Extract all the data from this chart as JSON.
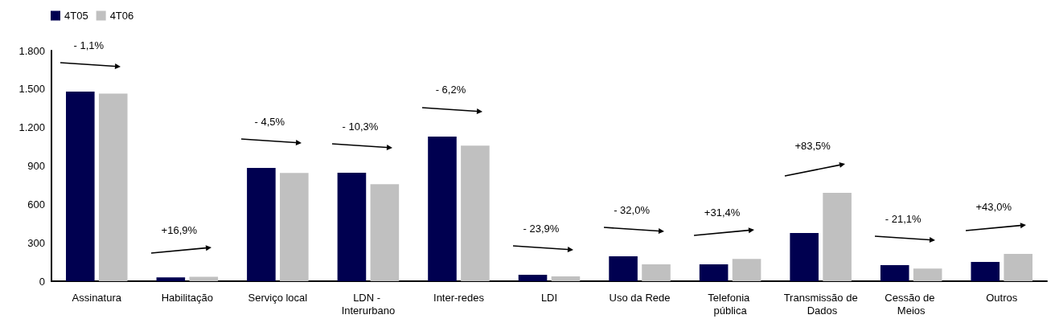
{
  "chart_data": {
    "type": "bar",
    "categories": [
      "Assinatura",
      "Habilitação",
      "Serviço local",
      "LDN - Interurbano",
      "Inter-redes",
      "LDI",
      "Uso da Rede",
      "Telefonia pública",
      "Transmissão de Dados",
      "Cessão de Meios",
      "Outros"
    ],
    "series": [
      {
        "name": "4T05",
        "color": "#000050",
        "values": [
          1480,
          30,
          884,
          846,
          1129,
          50,
          194,
          132,
          376,
          125,
          150
        ]
      },
      {
        "name": "4T06",
        "color": "#c0c0c0",
        "values": [
          1464,
          35,
          845,
          758,
          1059,
          38,
          132,
          174,
          690,
          99,
          214
        ]
      }
    ],
    "ylim": [
      0,
      1800
    ],
    "yticks": [
      0,
      300,
      600,
      900,
      {
        "value": 1200,
        "label": "1.200"
      },
      {
        "value": 1500,
        "label": "1.500"
      },
      {
        "value": 1800,
        "label": "1.800"
      }
    ],
    "grid": false,
    "legend": "top left",
    "annotations": [
      "- 1,1%",
      "+16,9%",
      "- 4,5%",
      "- 10,3%",
      "- 6,2%",
      "- 23,9%",
      "- 32,0%",
      "+31,4%",
      "+83,5%",
      "- 21,1%",
      "+43,0%"
    ]
  }
}
